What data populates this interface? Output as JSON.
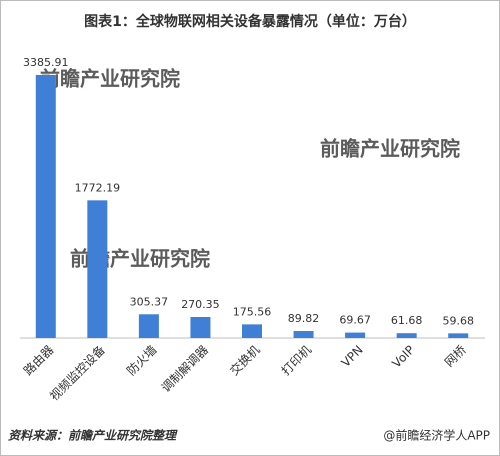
{
  "chart_data": {
    "type": "bar",
    "title": "图表1：全球物联网相关设备暴露情况（单位：万台）",
    "categories": [
      "路由器",
      "视频监控设备",
      "防火墙",
      "调制解调器",
      "交换机",
      "打印机",
      "VPN",
      "VoIP",
      "网桥"
    ],
    "values": [
      3385.91,
      1772.19,
      305.37,
      270.35,
      175.56,
      89.82,
      69.67,
      61.68,
      59.68
    ],
    "color": "#3f7fd6",
    "source": "资料来源：前瞻产业研究院整理",
    "credit": "@前瞻经济学人APP",
    "watermark": "前瞻产业研究院"
  }
}
